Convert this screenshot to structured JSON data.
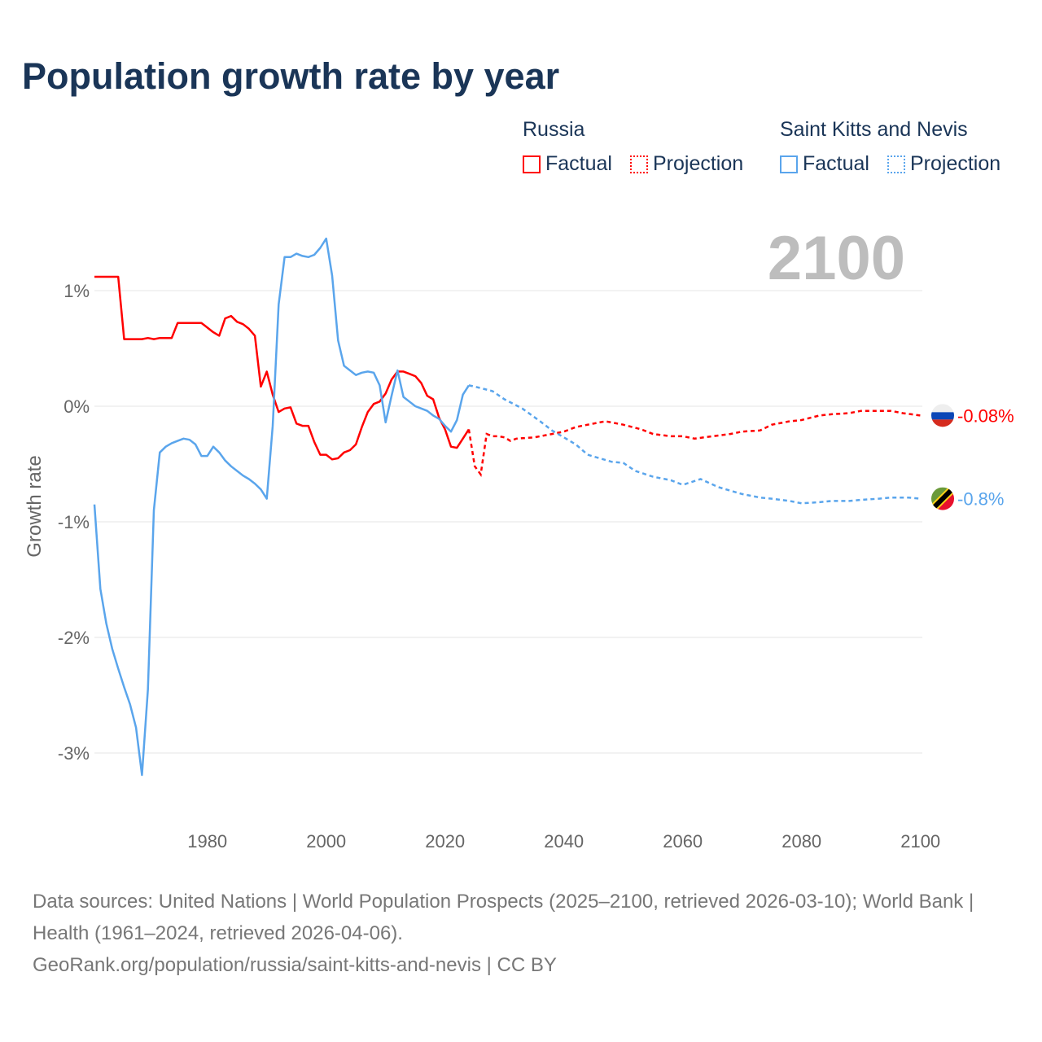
{
  "title": "Population growth rate by year",
  "current_year": "2100",
  "legend": [
    {
      "group": "Russia",
      "factual": "Factual",
      "projection": "Projection",
      "color": "#ff0000"
    },
    {
      "group": "Saint Kitts and Nevis",
      "factual": "Factual",
      "projection": "Projection",
      "color": "#5aa5ec"
    }
  ],
  "footer": {
    "sources": "Data sources: United Nations | World Population Prospects (2025–2100, retrieved 2026-03-10); World Bank | Health (1961–2024, retrieved 2026-04-06).",
    "link": "GeoRank.org/population/russia/saint-kitts-and-nevis | CC BY"
  },
  "chart_data": {
    "type": "line",
    "title": "Population growth rate by year",
    "xlabel": "",
    "ylabel": "Growth rate",
    "xlim": [
      1961,
      2100
    ],
    "ylim": [
      -3.5,
      1.6
    ],
    "xticks": [
      {
        "v": 1980,
        "label": "1980"
      },
      {
        "v": 2000,
        "label": "2000"
      },
      {
        "v": 2020,
        "label": "2020"
      },
      {
        "v": 2040,
        "label": "2040"
      },
      {
        "v": 2060,
        "label": "2060"
      },
      {
        "v": 2080,
        "label": "2080"
      },
      {
        "v": 2100,
        "label": "2100"
      }
    ],
    "yticks": [
      {
        "v": 1,
        "label": "1%"
      },
      {
        "v": 0,
        "label": "0%"
      },
      {
        "v": -1,
        "label": "-1%"
      },
      {
        "v": -2,
        "label": "-2%"
      },
      {
        "v": -3,
        "label": "-3%"
      }
    ],
    "grid": true,
    "series": [
      {
        "name": "Russia",
        "color": "#ff0000",
        "end_label": "-0.08%",
        "flag": "russia-flag",
        "factual": [
          [
            1961,
            1.12
          ],
          [
            1962,
            1.12
          ],
          [
            1963,
            1.12
          ],
          [
            1964,
            1.12
          ],
          [
            1965,
            1.12
          ],
          [
            1966,
            0.58
          ],
          [
            1967,
            0.58
          ],
          [
            1968,
            0.58
          ],
          [
            1969,
            0.58
          ],
          [
            1970,
            0.59
          ],
          [
            1971,
            0.58
          ],
          [
            1972,
            0.59
          ],
          [
            1973,
            0.59
          ],
          [
            1974,
            0.59
          ],
          [
            1975,
            0.72
          ],
          [
            1976,
            0.72
          ],
          [
            1977,
            0.72
          ],
          [
            1978,
            0.72
          ],
          [
            1979,
            0.72
          ],
          [
            1980,
            0.68
          ],
          [
            1981,
            0.64
          ],
          [
            1982,
            0.61
          ],
          [
            1983,
            0.76
          ],
          [
            1984,
            0.78
          ],
          [
            1985,
            0.73
          ],
          [
            1986,
            0.71
          ],
          [
            1987,
            0.67
          ],
          [
            1988,
            0.61
          ],
          [
            1989,
            0.17
          ],
          [
            1990,
            0.3
          ],
          [
            1991,
            0.1
          ],
          [
            1992,
            -0.05
          ],
          [
            1993,
            -0.02
          ],
          [
            1994,
            -0.01
          ],
          [
            1995,
            -0.15
          ],
          [
            1996,
            -0.17
          ],
          [
            1997,
            -0.17
          ],
          [
            1998,
            -0.31
          ],
          [
            1999,
            -0.42
          ],
          [
            2000,
            -0.42
          ],
          [
            2001,
            -0.46
          ],
          [
            2002,
            -0.45
          ],
          [
            2003,
            -0.4
          ],
          [
            2004,
            -0.38
          ],
          [
            2005,
            -0.33
          ],
          [
            2006,
            -0.18
          ],
          [
            2007,
            -0.05
          ],
          [
            2008,
            0.02
          ],
          [
            2009,
            0.04
          ],
          [
            2010,
            0.11
          ],
          [
            2011,
            0.23
          ],
          [
            2012,
            0.3
          ],
          [
            2013,
            0.3
          ],
          [
            2014,
            0.28
          ],
          [
            2015,
            0.26
          ],
          [
            2016,
            0.2
          ],
          [
            2017,
            0.09
          ],
          [
            2018,
            0.06
          ],
          [
            2019,
            -0.1
          ],
          [
            2020,
            -0.2
          ],
          [
            2021,
            -0.35
          ],
          [
            2022,
            -0.36
          ],
          [
            2023,
            -0.28
          ],
          [
            2024,
            -0.2
          ]
        ],
        "projection": [
          [
            2024,
            -0.2
          ],
          [
            2025,
            -0.52
          ],
          [
            2026,
            -0.59
          ],
          [
            2027,
            -0.24
          ],
          [
            2028,
            -0.26
          ],
          [
            2029,
            -0.26
          ],
          [
            2030,
            -0.27
          ],
          [
            2031,
            -0.3
          ],
          [
            2032,
            -0.28
          ],
          [
            2035,
            -0.27
          ],
          [
            2038,
            -0.24
          ],
          [
            2040,
            -0.22
          ],
          [
            2042,
            -0.18
          ],
          [
            2044,
            -0.16
          ],
          [
            2045,
            -0.15
          ],
          [
            2047,
            -0.13
          ],
          [
            2050,
            -0.16
          ],
          [
            2053,
            -0.2
          ],
          [
            2055,
            -0.24
          ],
          [
            2058,
            -0.26
          ],
          [
            2060,
            -0.26
          ],
          [
            2062,
            -0.28
          ],
          [
            2065,
            -0.26
          ],
          [
            2068,
            -0.24
          ],
          [
            2070,
            -0.22
          ],
          [
            2073,
            -0.21
          ],
          [
            2075,
            -0.16
          ],
          [
            2078,
            -0.13
          ],
          [
            2080,
            -0.12
          ],
          [
            2083,
            -0.08
          ],
          [
            2085,
            -0.07
          ],
          [
            2088,
            -0.06
          ],
          [
            2090,
            -0.04
          ],
          [
            2093,
            -0.04
          ],
          [
            2095,
            -0.04
          ],
          [
            2097,
            -0.06
          ],
          [
            2100,
            -0.08
          ]
        ]
      },
      {
        "name": "Saint Kitts and Nevis",
        "color": "#5aa5ec",
        "end_label": "-0.8%",
        "flag": "saint-kitts-and-nevis-flag",
        "factual": [
          [
            1961,
            -0.85
          ],
          [
            1962,
            -1.58
          ],
          [
            1963,
            -1.88
          ],
          [
            1964,
            -2.1
          ],
          [
            1965,
            -2.27
          ],
          [
            1966,
            -2.43
          ],
          [
            1967,
            -2.58
          ],
          [
            1968,
            -2.78
          ],
          [
            1969,
            -3.19
          ],
          [
            1970,
            -2.45
          ],
          [
            1971,
            -0.9
          ],
          [
            1972,
            -0.4
          ],
          [
            1973,
            -0.35
          ],
          [
            1974,
            -0.32
          ],
          [
            1975,
            -0.3
          ],
          [
            1976,
            -0.28
          ],
          [
            1977,
            -0.29
          ],
          [
            1978,
            -0.33
          ],
          [
            1979,
            -0.43
          ],
          [
            1980,
            -0.43
          ],
          [
            1981,
            -0.35
          ],
          [
            1982,
            -0.4
          ],
          [
            1983,
            -0.47
          ],
          [
            1984,
            -0.52
          ],
          [
            1985,
            -0.56
          ],
          [
            1986,
            -0.6
          ],
          [
            1987,
            -0.63
          ],
          [
            1988,
            -0.67
          ],
          [
            1989,
            -0.72
          ],
          [
            1990,
            -0.8
          ],
          [
            1991,
            -0.17
          ],
          [
            1992,
            0.88
          ],
          [
            1993,
            1.29
          ],
          [
            1994,
            1.29
          ],
          [
            1995,
            1.32
          ],
          [
            1996,
            1.3
          ],
          [
            1997,
            1.29
          ],
          [
            1998,
            1.31
          ],
          [
            1999,
            1.37
          ],
          [
            2000,
            1.45
          ],
          [
            2001,
            1.13
          ],
          [
            2002,
            0.57
          ],
          [
            2003,
            0.35
          ],
          [
            2004,
            0.31
          ],
          [
            2005,
            0.27
          ],
          [
            2006,
            0.29
          ],
          [
            2007,
            0.3
          ],
          [
            2008,
            0.29
          ],
          [
            2009,
            0.18
          ],
          [
            2010,
            -0.14
          ],
          [
            2011,
            0.09
          ],
          [
            2012,
            0.31
          ],
          [
            2013,
            0.08
          ],
          [
            2014,
            0.04
          ],
          [
            2015,
            0.0
          ],
          [
            2016,
            -0.02
          ],
          [
            2017,
            -0.04
          ],
          [
            2018,
            -0.08
          ],
          [
            2019,
            -0.11
          ],
          [
            2020,
            -0.17
          ],
          [
            2021,
            -0.22
          ],
          [
            2022,
            -0.12
          ],
          [
            2023,
            0.1
          ],
          [
            2024,
            0.18
          ]
        ],
        "projection": [
          [
            2024,
            0.18
          ],
          [
            2025,
            0.17
          ],
          [
            2028,
            0.13
          ],
          [
            2030,
            0.06
          ],
          [
            2033,
            -0.02
          ],
          [
            2036,
            -0.13
          ],
          [
            2038,
            -0.21
          ],
          [
            2040,
            -0.27
          ],
          [
            2042,
            -0.33
          ],
          [
            2044,
            -0.42
          ],
          [
            2046,
            -0.45
          ],
          [
            2048,
            -0.48
          ],
          [
            2050,
            -0.49
          ],
          [
            2052,
            -0.56
          ],
          [
            2055,
            -0.61
          ],
          [
            2058,
            -0.64
          ],
          [
            2060,
            -0.68
          ],
          [
            2063,
            -0.63
          ],
          [
            2066,
            -0.7
          ],
          [
            2068,
            -0.73
          ],
          [
            2070,
            -0.76
          ],
          [
            2073,
            -0.79
          ],
          [
            2075,
            -0.8
          ],
          [
            2078,
            -0.82
          ],
          [
            2080,
            -0.84
          ],
          [
            2083,
            -0.83
          ],
          [
            2085,
            -0.82
          ],
          [
            2088,
            -0.82
          ],
          [
            2090,
            -0.81
          ],
          [
            2093,
            -0.8
          ],
          [
            2095,
            -0.79
          ],
          [
            2098,
            -0.79
          ],
          [
            2100,
            -0.8
          ]
        ]
      }
    ]
  }
}
